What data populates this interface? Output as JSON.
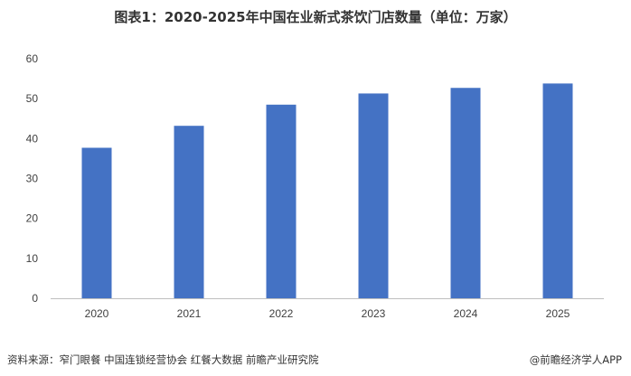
{
  "header": {
    "title": "图表1：2020-2025年中国在业新式茶饮门店数量（单位：万家）"
  },
  "footer": {
    "source": "资料来源：窄门眼餐 中国连锁经营协会 红餐大数据 前瞻产业研究院",
    "brand": "@前瞻经济学人APP"
  },
  "colors": {
    "bar": "#4472C4",
    "axis": "#BFBFBF",
    "text": "#404040"
  },
  "chart_data": {
    "type": "bar",
    "title": "图表1：2020-2025年中国在业新式茶饮门店数量（单位：万家）",
    "categories": [
      "2020",
      "2021",
      "2022",
      "2023",
      "2024",
      "2025"
    ],
    "values": [
      37.7,
      43.2,
      48.5,
      51.3,
      52.7,
      53.8
    ],
    "ylim": [
      0,
      60
    ],
    "yticks": [
      0,
      10,
      20,
      30,
      40,
      50,
      60
    ],
    "grid": false,
    "xlabel": "",
    "ylabel": ""
  }
}
